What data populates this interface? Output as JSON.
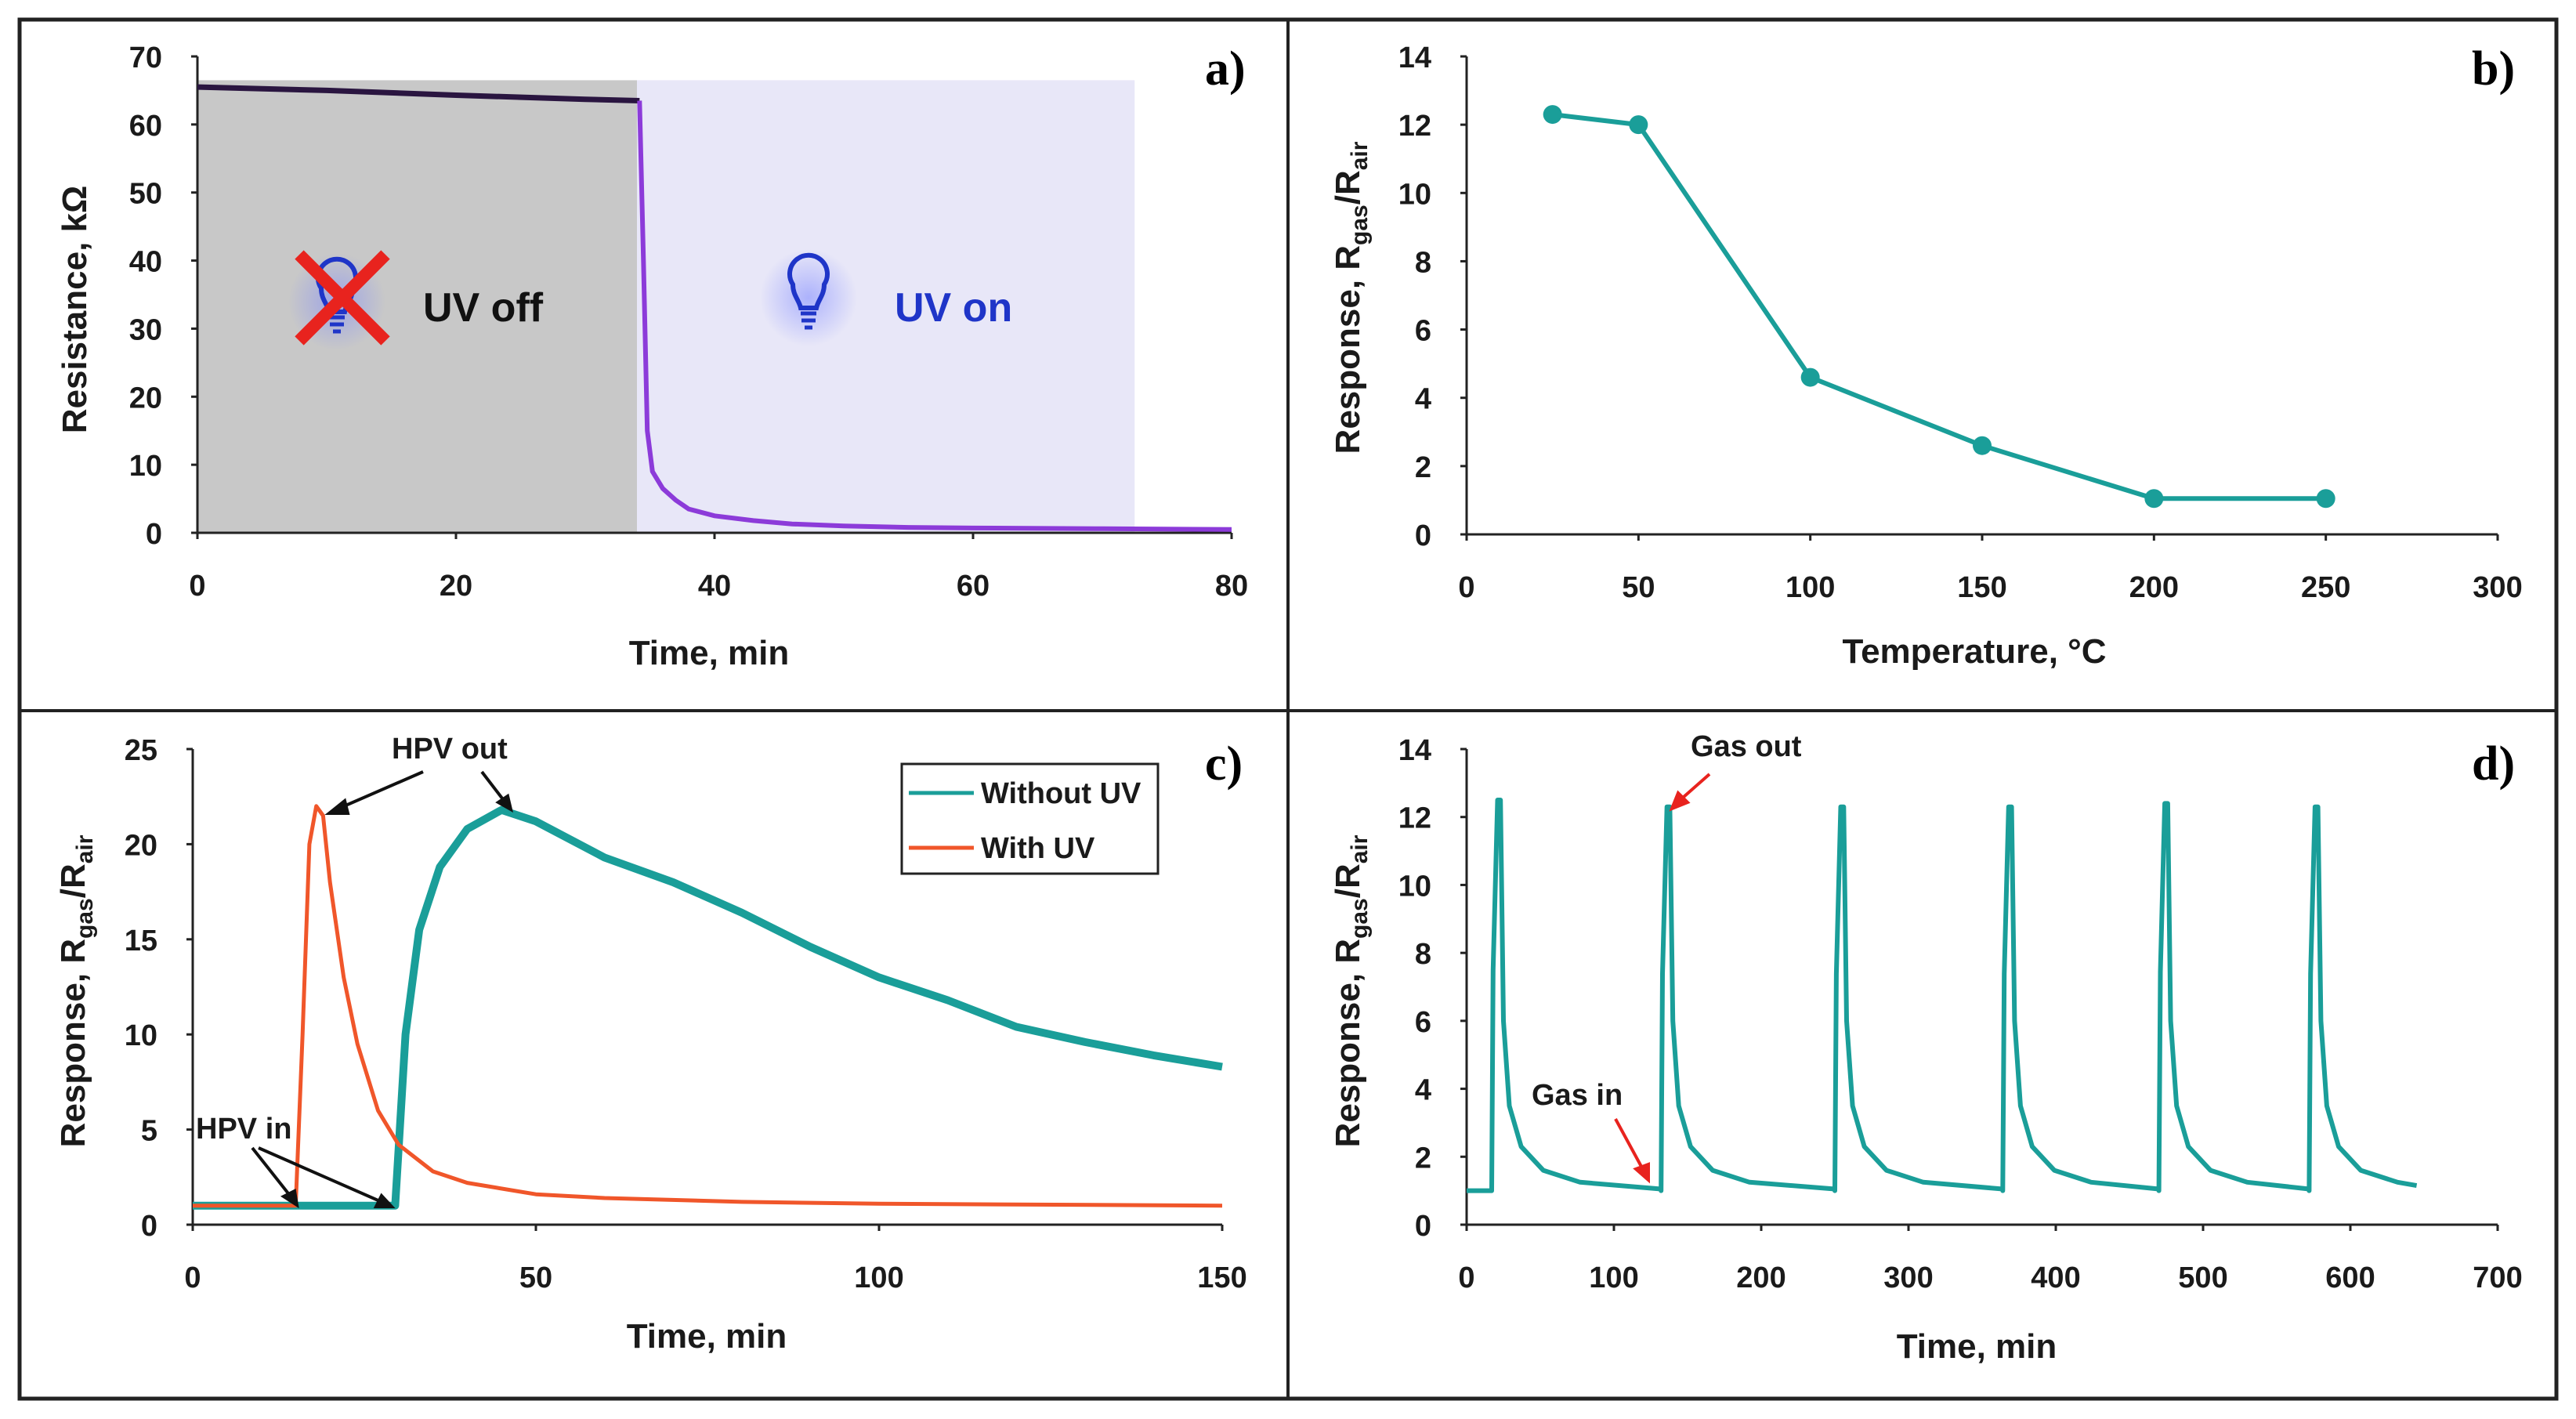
{
  "colors": {
    "teal": "#1a9e99",
    "orange": "#f0562a",
    "purple": "#8c3bd9",
    "dark_purple": "#2a1540",
    "uv_off_bg": "#c8c8c8",
    "uv_on_bg": "#e8e7f8",
    "bulb_blue": "#1f35c8",
    "cross_red": "#e8231e"
  },
  "chart_data": [
    {
      "panel": "a)",
      "type": "line",
      "xlabel": "Time, min",
      "ylabel": "Resistance, kΩ",
      "xlim": [
        0,
        80
      ],
      "ylim": [
        0,
        70
      ],
      "xticks": [
        "0",
        "20",
        "40",
        "60",
        "80"
      ],
      "yticks": [
        "0",
        "10",
        "20",
        "30",
        "40",
        "50",
        "60",
        "70"
      ],
      "regions": [
        {
          "label": "UV off",
          "x_start": 0,
          "x_end": 34
        },
        {
          "label": "UV on",
          "x_start": 34,
          "x_end": 72.5
        }
      ],
      "series": [
        {
          "name": "Resistance",
          "x": [
            0,
            10,
            20,
            30,
            34.2,
            34.5,
            34.8,
            35.2,
            36,
            37,
            38,
            40,
            43,
            46,
            50,
            55,
            60,
            70,
            80
          ],
          "y": [
            65.5,
            65,
            64.3,
            63.7,
            63.5,
            40,
            15,
            9,
            6.5,
            4.8,
            3.5,
            2.5,
            1.8,
            1.3,
            1,
            0.8,
            0.7,
            0.6,
            0.5
          ]
        }
      ]
    },
    {
      "panel": "b)",
      "type": "line",
      "xlabel": "Temperature, °C",
      "ylabel": "Response, Rgas/Rair",
      "xlim": [
        0,
        300
      ],
      "ylim": [
        0,
        14
      ],
      "xticks": [
        "0",
        "50",
        "100",
        "150",
        "200",
        "250",
        "300"
      ],
      "yticks": [
        "0",
        "2",
        "4",
        "6",
        "8",
        "10",
        "12",
        "14"
      ],
      "series": [
        {
          "name": "Response",
          "x": [
            25,
            50,
            100,
            150,
            200,
            250
          ],
          "y": [
            12.3,
            12,
            4.6,
            2.6,
            1.05,
            1.05
          ]
        }
      ]
    },
    {
      "panel": "c)",
      "type": "line",
      "xlabel": "Time, min",
      "ylabel": "Response, Rgas/Rair",
      "xlim": [
        0,
        150
      ],
      "ylim": [
        0,
        25
      ],
      "xticks": [
        "0",
        "50",
        "100",
        "150"
      ],
      "yticks": [
        "0",
        "5",
        "10",
        "15",
        "20",
        "25"
      ],
      "annotations": [
        "HPV out",
        "HPV in"
      ],
      "legend": [
        "Without UV",
        "With UV"
      ],
      "series": [
        {
          "name": "Without UV",
          "x": [
            0,
            29.5,
            30,
            31,
            33,
            36,
            40,
            45,
            50,
            60,
            70,
            80,
            90,
            100,
            110,
            120,
            130,
            140,
            150
          ],
          "y": [
            1,
            1,
            4,
            10,
            15.5,
            18.8,
            20.8,
            21.8,
            21.2,
            19.3,
            18,
            16.4,
            14.6,
            13,
            11.8,
            10.4,
            9.6,
            8.9,
            8.3
          ],
          "color": "teal"
        },
        {
          "name": "With UV",
          "x": [
            0,
            15,
            16,
            17,
            18,
            19,
            20,
            22,
            24,
            27,
            30,
            35,
            40,
            50,
            60,
            80,
            100,
            150
          ],
          "y": [
            1,
            1,
            10,
            20,
            22,
            21.5,
            18,
            13,
            9.5,
            6,
            4.2,
            2.8,
            2.2,
            1.6,
            1.4,
            1.2,
            1.1,
            1
          ],
          "color": "orange"
        }
      ]
    },
    {
      "panel": "d)",
      "type": "line",
      "xlabel": "Time, min",
      "ylabel": "Response, Rgas/Rair",
      "xlim": [
        0,
        700
      ],
      "ylim": [
        0,
        14
      ],
      "xticks": [
        "0",
        "100",
        "200",
        "300",
        "400",
        "500",
        "600",
        "700"
      ],
      "yticks": [
        "0",
        "2",
        "4",
        "6",
        "8",
        "10",
        "12",
        "14"
      ],
      "annotations": [
        "Gas out",
        "Gas in"
      ],
      "cycles": [
        {
          "start": 17,
          "peak": 12.5,
          "end": 132
        },
        {
          "start": 132,
          "peak": 12.3,
          "end": 250
        },
        {
          "start": 250,
          "peak": 12.3,
          "end": 364
        },
        {
          "start": 364,
          "peak": 12.3,
          "end": 470
        },
        {
          "start": 470,
          "peak": 12.4,
          "end": 572
        },
        {
          "start": 572,
          "peak": 12.3,
          "end": 645
        }
      ],
      "baseline": 1
    }
  ]
}
